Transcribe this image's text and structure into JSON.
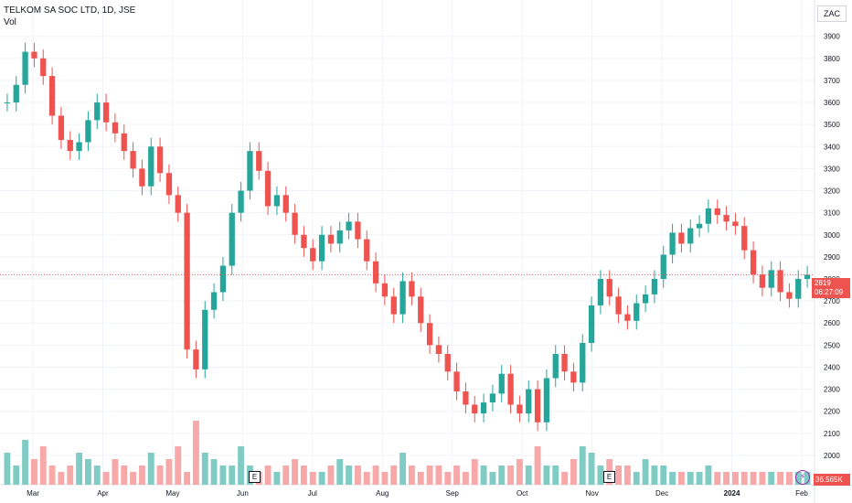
{
  "header": {
    "symbol": "TELKOM SA SOC LTD, 1D, JSE",
    "indicator": "Vol",
    "currency": "ZAC"
  },
  "price_tag": {
    "value": "2819",
    "countdown": "06:27:09"
  },
  "volume_tag": "36.565K",
  "event_marks": [
    "E",
    "E"
  ],
  "colors": {
    "up": "#26a69a",
    "down": "#ef5350",
    "up_vol": "#80cbc4",
    "down_vol": "#f7a8a8",
    "grid": "#f0f3fa",
    "price_line": "#ef5350"
  },
  "chart_data": {
    "type": "candlestick",
    "title": "TELKOM SA SOC LTD, 1D, JSE",
    "y_ticks": [
      2000,
      2100,
      2200,
      2300,
      2400,
      2500,
      2600,
      2700,
      2800,
      2900,
      3000,
      3100,
      3200,
      3300,
      3400,
      3500,
      3600,
      3700,
      3800,
      3900
    ],
    "ylim": [
      1950,
      3990
    ],
    "x_ticks": [
      "Mar",
      "Apr",
      "May",
      "Jun",
      "Jul",
      "Aug",
      "Sep",
      "Oct",
      "Nov",
      "Dec",
      "2024",
      "Feb"
    ],
    "last_price": 2819,
    "grid": true,
    "series": [
      {
        "name": "Price",
        "approx_close_path": [
          3600,
          3680,
          3830,
          3800,
          3720,
          3540,
          3430,
          3380,
          3420,
          3520,
          3600,
          3510,
          3460,
          3380,
          3300,
          3220,
          3400,
          3280,
          3180,
          3100,
          2480,
          2390,
          2660,
          2740,
          2860,
          3100,
          3200,
          3380,
          3290,
          3130,
          3180,
          3100,
          3000,
          2940,
          2880,
          3000,
          2960,
          3020,
          3060,
          2980,
          2880,
          2780,
          2720,
          2640,
          2790,
          2720,
          2600,
          2500,
          2460,
          2380,
          2290,
          2230,
          2190,
          2240,
          2280,
          2370,
          2230,
          2190,
          2300,
          2150,
          2350,
          2460,
          2380,
          2330,
          2510,
          2680,
          2800,
          2720,
          2640,
          2610,
          2690,
          2730,
          2800,
          2910,
          3010,
          2960,
          3030,
          3050,
          3120,
          3090,
          3060,
          3040,
          2930,
          2820,
          2760,
          2840,
          2740,
          2710,
          2800,
          2819
        ]
      },
      {
        "name": "Vol",
        "approx_relative_values": [
          0.5,
          0.3,
          0.7,
          0.4,
          0.6,
          0.3,
          0.2,
          0.3,
          0.5,
          0.4,
          0.3,
          0.2,
          0.4,
          0.3,
          0.2,
          0.3,
          0.5,
          0.3,
          0.4,
          0.6,
          0.2,
          1.0,
          0.5,
          0.4,
          0.3,
          0.3,
          0.6,
          0.3,
          0.2,
          0.3,
          0.2,
          0.3,
          0.4,
          0.3,
          0.2,
          0.2,
          0.3,
          0.4,
          0.3,
          0.3,
          0.2,
          0.3,
          0.2,
          0.3,
          0.5,
          0.3,
          0.2,
          0.3,
          0.3,
          0.2,
          0.3,
          0.2,
          0.4,
          0.3,
          0.2,
          0.3,
          0.3,
          0.4,
          0.3,
          0.6,
          0.3,
          0.3,
          0.2,
          0.4,
          0.6,
          0.5,
          0.3,
          0.4,
          0.3,
          0.3,
          0.2,
          0.4,
          0.3,
          0.3,
          0.2,
          0.2,
          0.2,
          0.2,
          0.3,
          0.2,
          0.2,
          0.2,
          0.2,
          0.2,
          0.2,
          0.2,
          0.2,
          0.2,
          0.2,
          0.2
        ]
      }
    ]
  }
}
